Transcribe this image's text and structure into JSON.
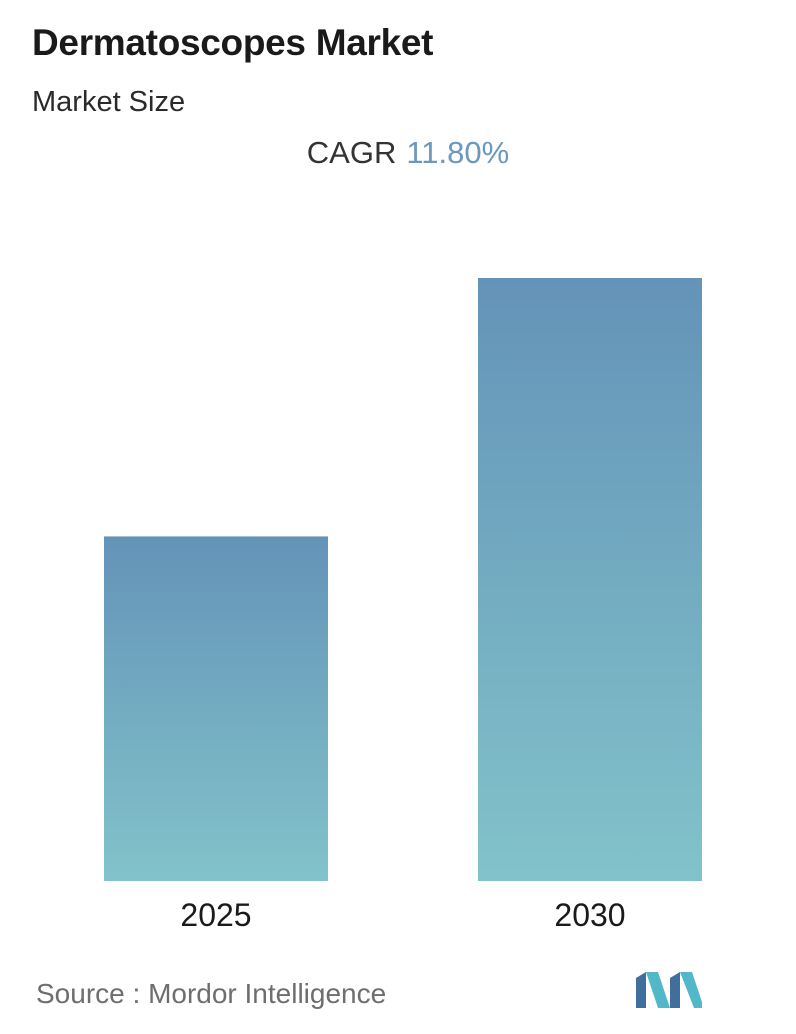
{
  "header": {
    "title": "Dermatoscopes Market",
    "subtitle": "Market Size"
  },
  "cagr": {
    "label": "CAGR",
    "value": "11.80%"
  },
  "colors": {
    "bar_top": "#6493b8",
    "bar_bottom": "#82c3ca",
    "cagr_value": "#6b98bd",
    "logo_dark": "#3f6f9a",
    "logo_light": "#52b7c8"
  },
  "chart_data": {
    "type": "bar",
    "categories": [
      "2025",
      "2030"
    ],
    "values": [
      1.0,
      1.75
    ],
    "title": "Dermatoscopes Market",
    "subtitle": "Market Size",
    "xlabel": "",
    "ylabel": "",
    "grid": false,
    "legend": "none",
    "annotations": [
      "CAGR 11.80%"
    ]
  },
  "footer": {
    "source_label": "Source :",
    "source_name": "Mordor Intelligence",
    "logo_icon": "mordor-intelligence-logo-icon"
  }
}
